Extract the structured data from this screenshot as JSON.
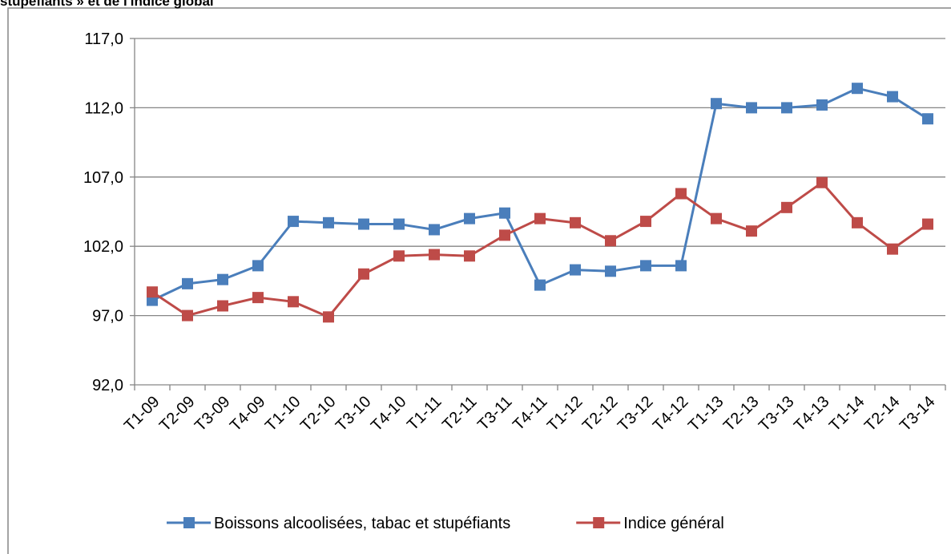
{
  "chart_data": {
    "type": "line",
    "title": "stupéfiants » et de l'indice global",
    "categories": [
      "T1-09",
      "T2-09",
      "T3-09",
      "T4-09",
      "T1-10",
      "T2-10",
      "T3-10",
      "T4-10",
      "T1-11",
      "T2-11",
      "T3-11",
      "T4-11",
      "T1-12",
      "T2-12",
      "T3-12",
      "T4-12",
      "T1-13",
      "T2-13",
      "T3-13",
      "T4-13",
      "T1-14",
      "T2-14",
      "T3-14"
    ],
    "series": [
      {
        "name": "Boissons alcoolisées, tabac et stupéfiants",
        "color": "#4a7ebb",
        "values": [
          98.1,
          99.3,
          99.6,
          100.6,
          103.8,
          103.7,
          103.6,
          103.6,
          103.2,
          104.0,
          104.4,
          99.2,
          100.3,
          100.2,
          100.6,
          100.6,
          112.3,
          112.0,
          112.0,
          112.2,
          113.4,
          112.8,
          111.2
        ]
      },
      {
        "name": "Indice général",
        "color": "#be4b48",
        "values": [
          98.7,
          97.0,
          97.7,
          98.3,
          98.0,
          96.9,
          100.0,
          101.3,
          101.4,
          101.3,
          102.8,
          104.0,
          103.7,
          102.4,
          103.8,
          105.8,
          104.0,
          103.1,
          104.8,
          106.6,
          103.7,
          101.8,
          103.6
        ]
      }
    ],
    "ylim": [
      92,
      117
    ],
    "yticks": [
      {
        "value": 92,
        "label": "92,0"
      },
      {
        "value": 97,
        "label": "97,0"
      },
      {
        "value": 102,
        "label": "102,0"
      },
      {
        "value": 107,
        "label": "107,0"
      },
      {
        "value": 112,
        "label": "112,0"
      },
      {
        "value": 117,
        "label": "117,0"
      }
    ],
    "grid": true,
    "legend": "bottom"
  }
}
